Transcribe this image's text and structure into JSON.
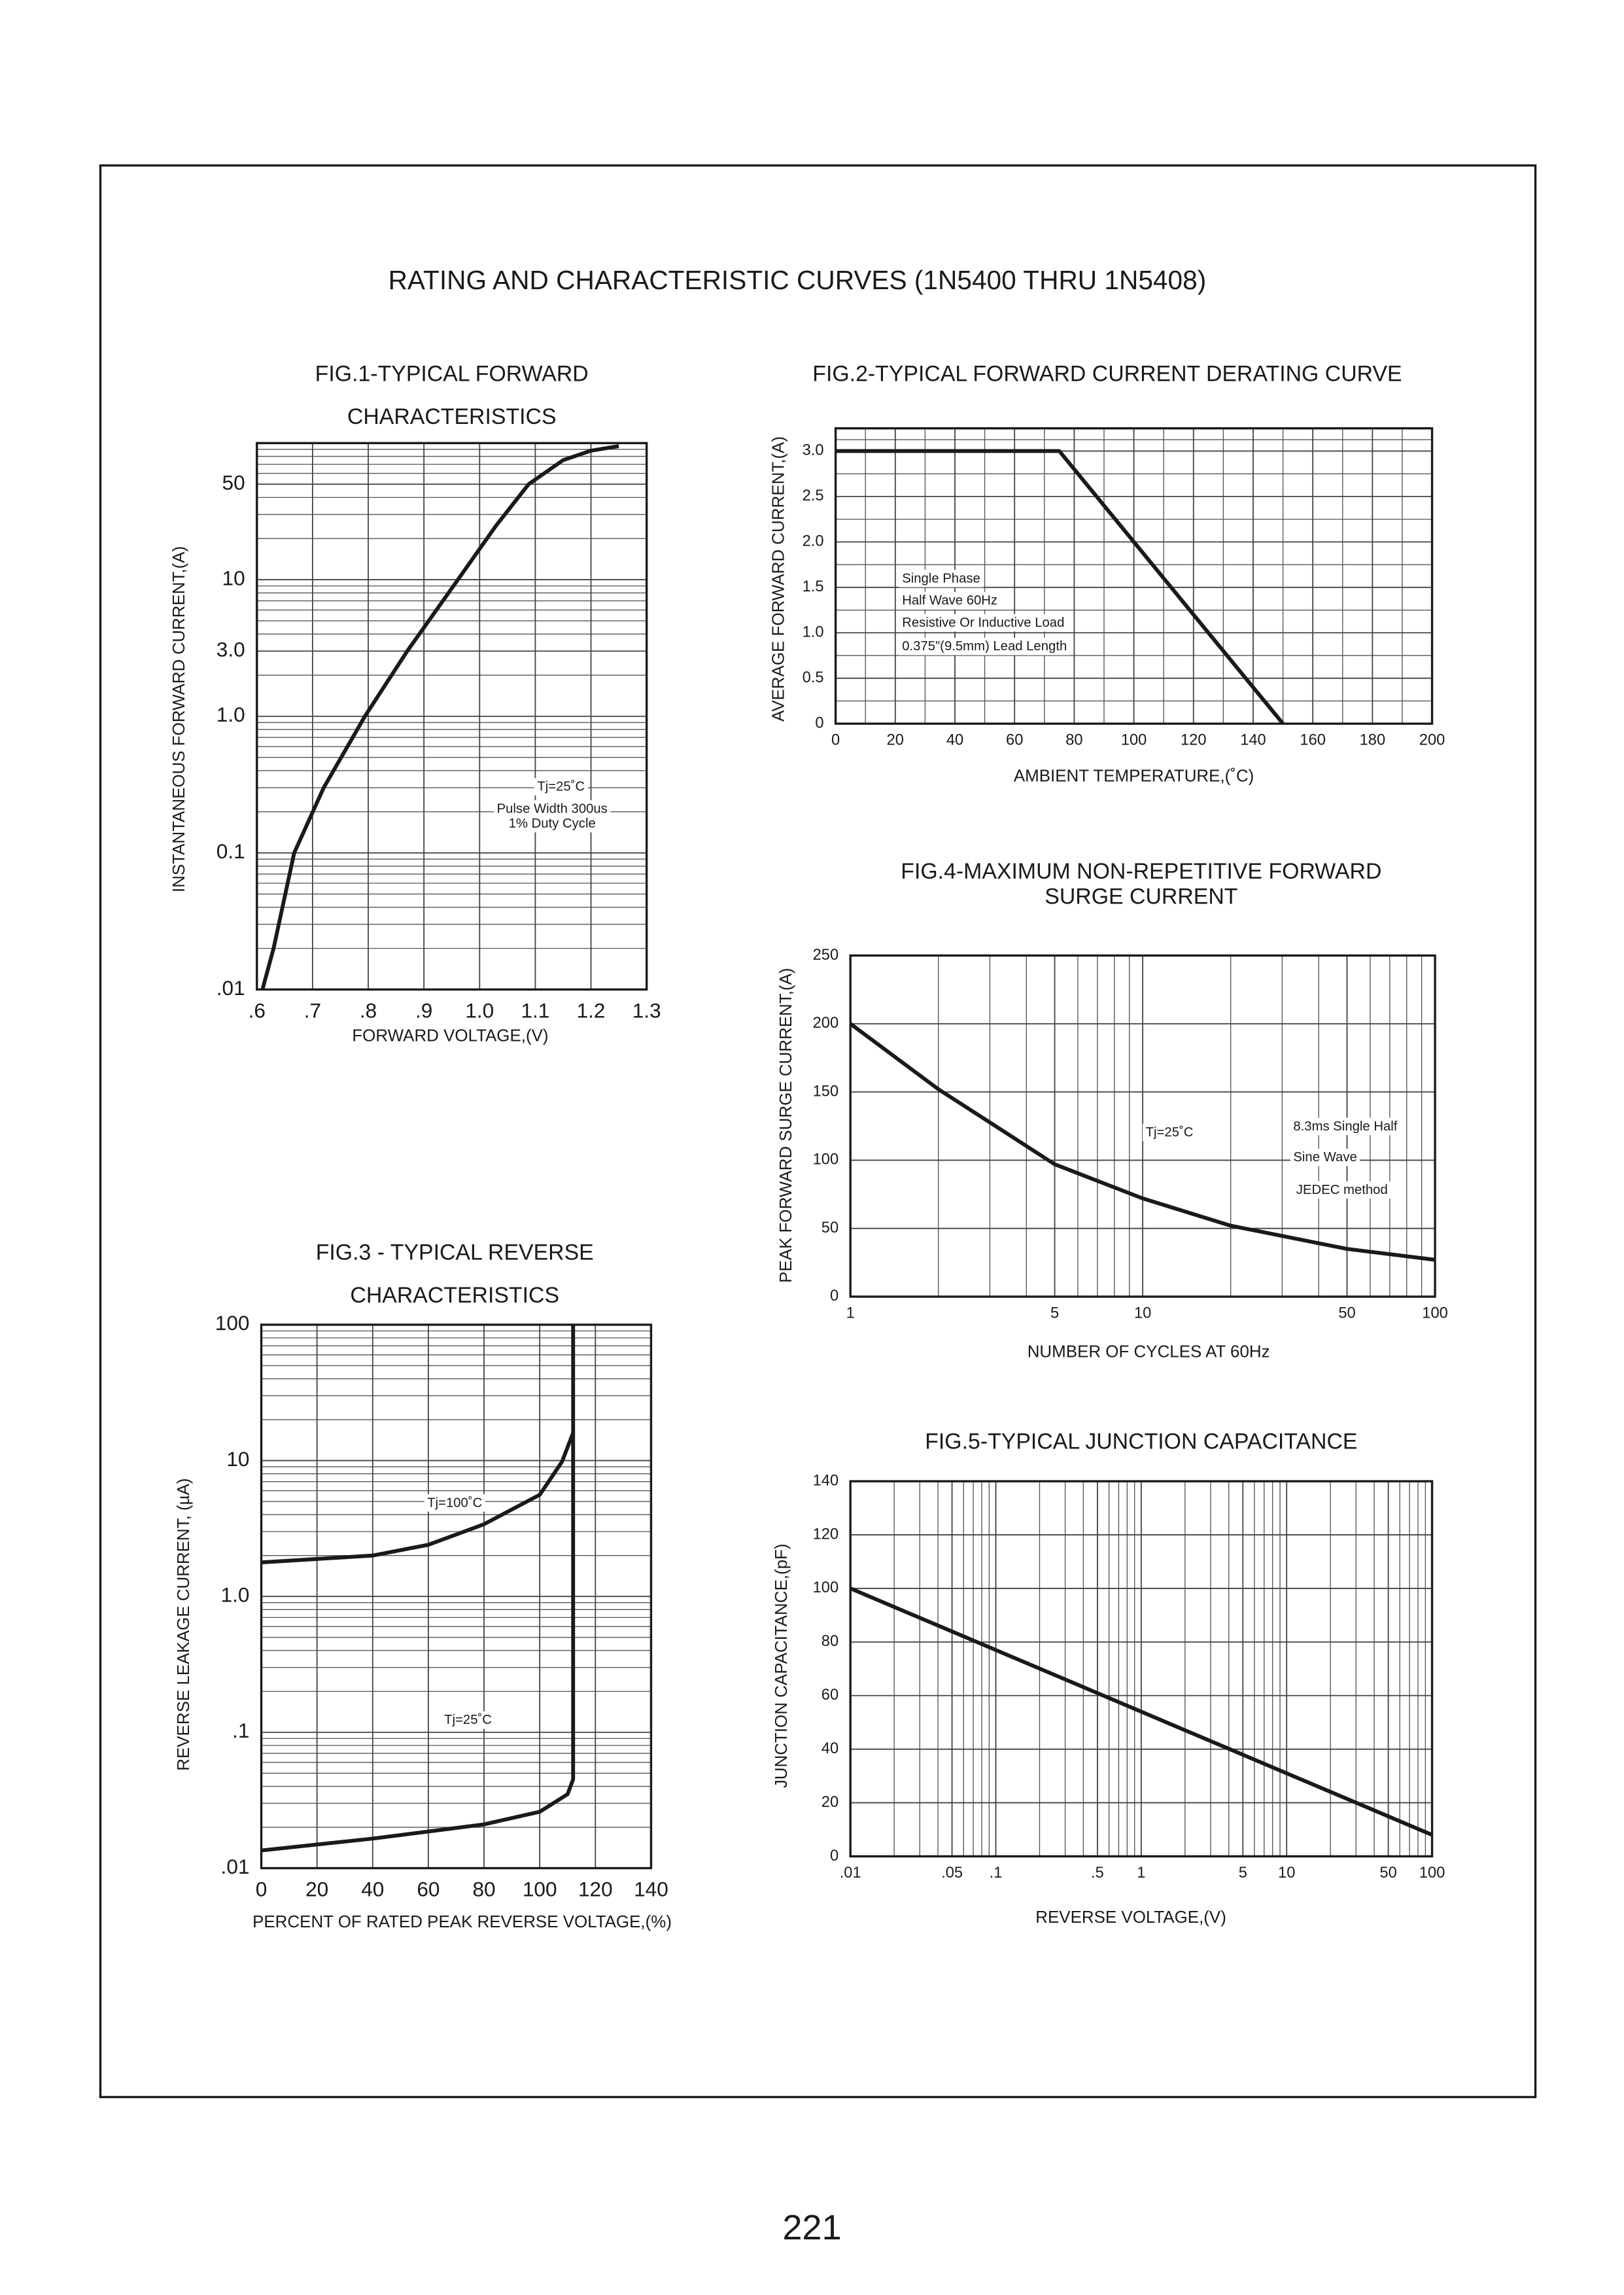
{
  "title": "RATING AND CHARACTERISTIC CURVES (1N5400 THRU 1N5408)",
  "page_number": "221",
  "chart_data": [
    {
      "type": "line",
      "title": [
        "FIG.1-TYPICAL FORWARD",
        "CHARACTERISTICS"
      ],
      "x_label": "FORWARD VOLTAGE,(V)",
      "y_label": "INSTANTANEOUS FORWARD CURRENT,(A)",
      "x": [
        0.61,
        0.63,
        0.667,
        0.72,
        0.794,
        0.87,
        0.961,
        1.03,
        1.088,
        1.15,
        1.2,
        1.25
      ],
      "values": [
        0.01,
        0.02,
        0.1,
        0.3,
        1.0,
        3,
        10,
        25,
        50,
        75,
        88,
        95
      ],
      "color": "#1a1a1a",
      "xlim": [
        0.6,
        1.3
      ],
      "xticks": [
        {
          "value": 0.6,
          "label": ".6"
        },
        {
          "value": 0.7,
          "label": ".7"
        },
        {
          "value": 0.8,
          "label": ".8"
        },
        {
          "value": 0.9,
          "label": ".9"
        },
        {
          "value": 1.0,
          "label": "1.0"
        },
        1.1,
        1.2,
        1.3
      ],
      "ylim": [
        0.01,
        100
      ],
      "log_y": true,
      "yticks": [
        {
          "value": 0.01,
          "label": ".01"
        },
        0.1,
        {
          "value": 1,
          "label": "1.0"
        },
        {
          "value": 3,
          "label": "3.0"
        },
        10,
        50
      ],
      "grid": true,
      "annotations": [
        "Tj=25˚C",
        "Pulse Width 300us",
        "1% Duty Cycle"
      ]
    },
    {
      "type": "line",
      "title": [
        "FIG.2-TYPICAL FORWARD CURRENT DERATING CURVE"
      ],
      "x_label": "AMBIENT TEMPERATURE,(˚C)",
      "y_label": "AVERAGE FORWARD CURRENT,(A)",
      "x": [
        0,
        75,
        150
      ],
      "values": [
        3,
        3,
        0
      ],
      "color": "#1a1a1a",
      "xlim": [
        0,
        200
      ],
      "xticks": [
        0,
        20,
        40,
        60,
        80,
        100,
        120,
        140,
        160,
        180,
        200
      ],
      "ylim": [
        0,
        3.25
      ],
      "yticks": [
        0,
        0.5,
        {
          "value": 1,
          "label": "1.0"
        },
        1.5,
        {
          "value": 2,
          "label": "2.0"
        },
        2.5,
        {
          "value": 3,
          "label": "3.0"
        }
      ],
      "grid": true,
      "minor_grid": true,
      "annotations": [
        "Single Phase",
        "Half Wave 60Hz",
        "Resistive Or Inductive Load",
        "0.375\"(9.5mm) Lead Length"
      ]
    },
    {
      "type": "line",
      "title": [
        "FIG.3 - TYPICAL REVERSE",
        "CHARACTERISTICS"
      ],
      "x_label": "PERCENT OF RATED PEAK REVERSE VOLTAGE,(%)",
      "y_label": "REVERSE LEAKAGE CURRENT, (µA)",
      "series": [
        {
          "name": "Tj=100˚C",
          "color": "#1a1a1a",
          "x": [
            0,
            40,
            60,
            80,
            100,
            108,
            112
          ],
          "values": [
            1.78,
            2.0,
            2.4,
            3.4,
            5.6,
            9.8,
            16
          ]
        },
        {
          "name": "Tj=25˚C",
          "color": "#1a1a1a",
          "x": [
            0,
            40,
            80,
            100,
            110,
            112,
            112
          ],
          "values": [
            0.0135,
            0.0165,
            0.021,
            0.026,
            0.035,
            0.045,
            100
          ]
        }
      ],
      "xlim": [
        0,
        140
      ],
      "xticks": [
        0,
        20,
        40,
        60,
        80,
        100,
        120,
        140
      ],
      "ylim": [
        0.01,
        100
      ],
      "log_y": true,
      "yticks": [
        {
          "value": 0.01,
          "label": ".01"
        },
        {
          "value": 0.1,
          "label": ".1"
        },
        {
          "value": 1,
          "label": "1.0"
        },
        10,
        100
      ],
      "grid": true
    },
    {
      "type": "line",
      "title": [
        "FIG.4-MAXIMUM NON-REPETITIVE FORWARD",
        "SURGE CURRENT"
      ],
      "x_label": "NUMBER OF CYCLES AT 60Hz",
      "y_label": "PEAK FORWARD SURGE CURRENT,(A)",
      "x": [
        1,
        2,
        5,
        10,
        20,
        50,
        100
      ],
      "values": [
        200,
        152,
        97,
        72,
        52,
        35,
        27
      ],
      "color": "#1a1a1a",
      "xlim": [
        1,
        100
      ],
      "log_x": true,
      "xticks": [
        1,
        5,
        10,
        50,
        100
      ],
      "ylim": [
        0,
        250
      ],
      "yticks": [
        0,
        50,
        100,
        150,
        200,
        250
      ],
      "grid": true,
      "annotations": [
        "Tj=25˚C",
        "8.3ms Single Half",
        "Sine Wave",
        "JEDEC method"
      ]
    },
    {
      "type": "line",
      "title": [
        "FIG.5-TYPICAL JUNCTION CAPACITANCE"
      ],
      "x_label": "REVERSE VOLTAGE,(V)",
      "y_label": "JUNCTION CAPACITANCE,(pF)",
      "x": [
        0.01,
        100
      ],
      "values": [
        100,
        8
      ],
      "color": "#1a1a1a",
      "xlim": [
        0.01,
        100
      ],
      "log_x": true,
      "xticks": [
        {
          "value": 0.01,
          "label": ".01"
        },
        {
          "value": 0.05,
          "label": ".05"
        },
        {
          "value": 0.1,
          "label": ".1"
        },
        {
          "value": 0.5,
          "label": ".5"
        },
        1,
        5,
        10,
        50,
        100
      ],
      "ylim": [
        0,
        140
      ],
      "yticks": [
        0,
        20,
        40,
        60,
        80,
        100,
        120,
        140
      ],
      "grid": true
    }
  ]
}
